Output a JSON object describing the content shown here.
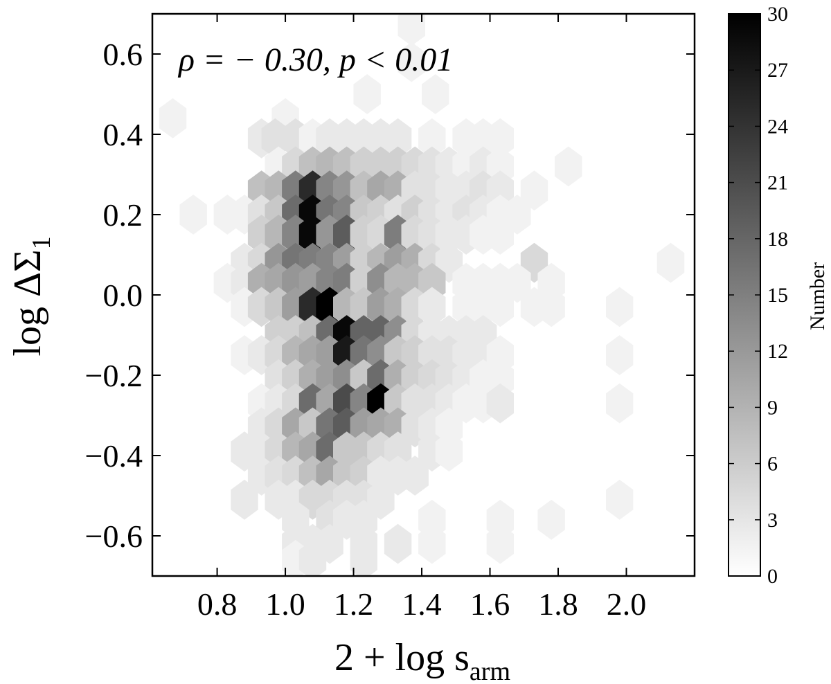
{
  "chart_data": {
    "type": "heatmap",
    "subtype": "hexbin",
    "title": "",
    "xlabel_main": "2 + log s",
    "xlabel_sub": "arm",
    "ylabel_main": "log ΔΣ",
    "ylabel_sub": "1",
    "xlim": [
      0.61,
      2.2
    ],
    "ylim": [
      -0.7,
      0.7
    ],
    "xticks": [
      "0.8",
      "1.0",
      "1.2",
      "1.4",
      "1.6",
      "1.8",
      "2.0"
    ],
    "yticks": [
      "0.6",
      "0.4",
      "0.2",
      "0.0",
      "−0.2",
      "−0.4",
      "−0.6"
    ],
    "annotation": "ρ = − 0.30, p < 0.01",
    "colorbar": {
      "label": "Number",
      "min": 0,
      "max": 30,
      "ticks": [
        "0",
        "3",
        "6",
        "9",
        "12",
        "15",
        "18",
        "21",
        "24",
        "27",
        "30"
      ],
      "cmap": "Greys"
    },
    "hex_width_x": 0.08,
    "hex_height_y": 0.0866,
    "bins": [
      [
        0.67,
        0.44,
        1
      ],
      [
        1.37,
        0.67,
        1
      ],
      [
        1.0,
        0.44,
        1
      ],
      [
        1.37,
        0.58,
        1
      ],
      [
        1.24,
        0.5,
        1
      ],
      [
        1.44,
        0.5,
        1
      ],
      [
        1.18,
        0.39,
        2
      ],
      [
        0.93,
        0.39,
        2
      ],
      [
        0.97,
        0.39,
        3
      ],
      [
        1.03,
        0.39,
        3
      ],
      [
        1.08,
        0.39,
        1
      ],
      [
        1.13,
        0.39,
        2
      ],
      [
        1.23,
        0.39,
        2
      ],
      [
        1.28,
        0.39,
        2
      ],
      [
        1.33,
        0.39,
        2
      ],
      [
        1.43,
        0.39,
        1
      ],
      [
        1.53,
        0.39,
        1
      ],
      [
        1.58,
        0.39,
        1
      ],
      [
        1.63,
        0.39,
        1
      ],
      [
        0.98,
        0.32,
        1
      ],
      [
        1.03,
        0.32,
        4
      ],
      [
        1.08,
        0.32,
        7
      ],
      [
        1.13,
        0.32,
        8
      ],
      [
        1.18,
        0.32,
        7
      ],
      [
        1.23,
        0.32,
        5
      ],
      [
        1.28,
        0.32,
        5
      ],
      [
        1.33,
        0.32,
        5
      ],
      [
        1.38,
        0.32,
        4
      ],
      [
        1.43,
        0.32,
        3
      ],
      [
        1.48,
        0.32,
        2
      ],
      [
        1.53,
        0.32,
        1
      ],
      [
        1.58,
        0.32,
        2
      ],
      [
        1.63,
        0.32,
        1
      ],
      [
        1.83,
        0.32,
        1
      ],
      [
        0.93,
        0.26,
        7
      ],
      [
        0.98,
        0.26,
        8
      ],
      [
        1.03,
        0.26,
        15
      ],
      [
        1.08,
        0.26,
        25
      ],
      [
        1.13,
        0.26,
        14
      ],
      [
        1.18,
        0.26,
        12
      ],
      [
        1.23,
        0.26,
        7
      ],
      [
        1.28,
        0.26,
        10
      ],
      [
        1.33,
        0.26,
        9
      ],
      [
        1.38,
        0.26,
        3
      ],
      [
        1.43,
        0.26,
        3
      ],
      [
        1.48,
        0.26,
        2
      ],
      [
        1.53,
        0.26,
        2
      ],
      [
        1.58,
        0.26,
        3
      ],
      [
        1.63,
        0.26,
        2
      ],
      [
        1.73,
        0.26,
        1
      ],
      [
        0.73,
        0.2,
        1
      ],
      [
        0.83,
        0.2,
        1
      ],
      [
        0.88,
        0.2,
        1
      ],
      [
        0.93,
        0.2,
        3
      ],
      [
        0.98,
        0.2,
        6
      ],
      [
        1.03,
        0.2,
        17
      ],
      [
        1.08,
        0.2,
        29
      ],
      [
        1.13,
        0.2,
        16
      ],
      [
        1.18,
        0.2,
        14
      ],
      [
        1.23,
        0.2,
        6
      ],
      [
        1.28,
        0.2,
        5
      ],
      [
        1.33,
        0.2,
        3
      ],
      [
        1.38,
        0.2,
        5
      ],
      [
        1.43,
        0.2,
        3
      ],
      [
        1.48,
        0.2,
        2
      ],
      [
        1.53,
        0.2,
        3
      ],
      [
        1.58,
        0.2,
        2
      ],
      [
        1.63,
        0.2,
        1
      ],
      [
        1.68,
        0.2,
        1
      ],
      [
        0.93,
        0.15,
        5
      ],
      [
        0.98,
        0.15,
        8
      ],
      [
        1.03,
        0.15,
        14
      ],
      [
        1.08,
        0.15,
        29
      ],
      [
        1.13,
        0.15,
        12
      ],
      [
        1.18,
        0.15,
        19
      ],
      [
        1.23,
        0.15,
        5
      ],
      [
        1.28,
        0.15,
        4
      ],
      [
        1.33,
        0.15,
        15
      ],
      [
        1.38,
        0.15,
        4
      ],
      [
        1.43,
        0.15,
        3
      ],
      [
        1.48,
        0.15,
        2
      ],
      [
        1.53,
        0.15,
        2
      ],
      [
        1.58,
        0.15,
        1
      ],
      [
        1.63,
        0.15,
        1
      ],
      [
        0.88,
        0.08,
        2
      ],
      [
        0.93,
        0.08,
        4
      ],
      [
        0.98,
        0.08,
        12
      ],
      [
        1.03,
        0.08,
        16
      ],
      [
        1.08,
        0.08,
        15
      ],
      [
        1.13,
        0.08,
        14
      ],
      [
        1.18,
        0.08,
        11
      ],
      [
        1.23,
        0.08,
        5
      ],
      [
        1.28,
        0.08,
        8
      ],
      [
        1.33,
        0.08,
        11
      ],
      [
        1.38,
        0.08,
        9
      ],
      [
        1.43,
        0.08,
        4
      ],
      [
        1.48,
        0.08,
        2
      ],
      [
        1.73,
        0.08,
        4
      ],
      [
        2.13,
        0.08,
        1
      ],
      [
        0.83,
        0.03,
        1
      ],
      [
        0.88,
        0.03,
        2
      ],
      [
        0.93,
        0.03,
        9
      ],
      [
        0.98,
        0.03,
        10
      ],
      [
        1.03,
        0.03,
        12
      ],
      [
        1.08,
        0.03,
        11
      ],
      [
        1.13,
        0.03,
        14
      ],
      [
        1.18,
        0.03,
        15
      ],
      [
        1.23,
        0.03,
        5
      ],
      [
        1.28,
        0.03,
        13
      ],
      [
        1.33,
        0.03,
        8
      ],
      [
        1.38,
        0.03,
        8
      ],
      [
        1.43,
        0.03,
        6
      ],
      [
        1.53,
        0.03,
        1
      ],
      [
        1.58,
        0.03,
        1
      ],
      [
        1.63,
        0.03,
        1
      ],
      [
        1.68,
        0.03,
        1
      ],
      [
        1.78,
        0.03,
        1
      ],
      [
        0.88,
        -0.03,
        1
      ],
      [
        0.93,
        -0.03,
        4
      ],
      [
        0.98,
        -0.03,
        6
      ],
      [
        1.03,
        -0.03,
        11
      ],
      [
        1.08,
        -0.03,
        25
      ],
      [
        1.13,
        -0.03,
        30
      ],
      [
        1.18,
        -0.03,
        8
      ],
      [
        1.23,
        -0.03,
        6
      ],
      [
        1.28,
        -0.03,
        11
      ],
      [
        1.33,
        -0.03,
        9
      ],
      [
        1.38,
        -0.03,
        4
      ],
      [
        1.43,
        -0.03,
        2
      ],
      [
        1.53,
        -0.03,
        1
      ],
      [
        1.58,
        -0.03,
        1
      ],
      [
        1.63,
        -0.03,
        1
      ],
      [
        1.73,
        -0.03,
        1
      ],
      [
        1.78,
        -0.03,
        1
      ],
      [
        1.98,
        -0.03,
        1
      ],
      [
        0.98,
        -0.1,
        5
      ],
      [
        1.03,
        -0.1,
        5
      ],
      [
        1.08,
        -0.1,
        7
      ],
      [
        1.13,
        -0.1,
        17
      ],
      [
        1.18,
        -0.1,
        29
      ],
      [
        1.23,
        -0.1,
        18
      ],
      [
        1.28,
        -0.1,
        18
      ],
      [
        1.33,
        -0.1,
        13
      ],
      [
        1.38,
        -0.1,
        4
      ],
      [
        1.43,
        -0.1,
        2
      ],
      [
        1.48,
        -0.1,
        2
      ],
      [
        1.53,
        -0.1,
        2
      ],
      [
        1.58,
        -0.1,
        2
      ],
      [
        0.88,
        -0.15,
        1
      ],
      [
        0.93,
        -0.15,
        2
      ],
      [
        0.98,
        -0.15,
        4
      ],
      [
        1.03,
        -0.15,
        8
      ],
      [
        1.08,
        -0.15,
        10
      ],
      [
        1.13,
        -0.15,
        11
      ],
      [
        1.18,
        -0.15,
        27
      ],
      [
        1.23,
        -0.15,
        16
      ],
      [
        1.28,
        -0.15,
        13
      ],
      [
        1.33,
        -0.15,
        6
      ],
      [
        1.38,
        -0.15,
        5
      ],
      [
        1.43,
        -0.15,
        3
      ],
      [
        1.48,
        -0.15,
        3
      ],
      [
        1.53,
        -0.15,
        2
      ],
      [
        1.58,
        -0.15,
        2
      ],
      [
        1.63,
        -0.15,
        1
      ],
      [
        1.98,
        -0.15,
        1
      ],
      [
        0.98,
        -0.21,
        3
      ],
      [
        1.03,
        -0.21,
        5
      ],
      [
        1.08,
        -0.21,
        9
      ],
      [
        1.13,
        -0.21,
        11
      ],
      [
        1.18,
        -0.21,
        13
      ],
      [
        1.23,
        -0.21,
        6
      ],
      [
        1.28,
        -0.21,
        17
      ],
      [
        1.33,
        -0.21,
        9
      ],
      [
        1.38,
        -0.21,
        5
      ],
      [
        1.43,
        -0.21,
        4
      ],
      [
        1.48,
        -0.21,
        3
      ],
      [
        1.53,
        -0.21,
        2
      ],
      [
        1.58,
        -0.21,
        1
      ],
      [
        1.63,
        -0.21,
        1
      ],
      [
        0.93,
        -0.27,
        1
      ],
      [
        0.98,
        -0.27,
        2
      ],
      [
        1.03,
        -0.27,
        4
      ],
      [
        1.08,
        -0.27,
        17
      ],
      [
        1.13,
        -0.27,
        10
      ],
      [
        1.18,
        -0.27,
        21
      ],
      [
        1.23,
        -0.27,
        14
      ],
      [
        1.28,
        -0.27,
        30
      ],
      [
        1.33,
        -0.27,
        6
      ],
      [
        1.38,
        -0.27,
        3
      ],
      [
        1.43,
        -0.27,
        3
      ],
      [
        1.48,
        -0.27,
        2
      ],
      [
        1.53,
        -0.27,
        1
      ],
      [
        1.58,
        -0.27,
        1
      ],
      [
        1.63,
        -0.27,
        2
      ],
      [
        1.98,
        -0.27,
        1
      ],
      [
        0.93,
        -0.33,
        2
      ],
      [
        0.98,
        -0.33,
        4
      ],
      [
        1.03,
        -0.33,
        10
      ],
      [
        1.08,
        -0.33,
        6
      ],
      [
        1.13,
        -0.33,
        16
      ],
      [
        1.18,
        -0.33,
        19
      ],
      [
        1.23,
        -0.33,
        11
      ],
      [
        1.28,
        -0.33,
        10
      ],
      [
        1.33,
        -0.33,
        9
      ],
      [
        1.38,
        -0.33,
        3
      ],
      [
        1.43,
        -0.33,
        2
      ],
      [
        1.48,
        -0.33,
        1
      ],
      [
        0.88,
        -0.39,
        2
      ],
      [
        0.93,
        -0.39,
        2
      ],
      [
        0.98,
        -0.39,
        4
      ],
      [
        1.03,
        -0.39,
        8
      ],
      [
        1.08,
        -0.39,
        10
      ],
      [
        1.13,
        -0.39,
        17
      ],
      [
        1.18,
        -0.39,
        6
      ],
      [
        1.23,
        -0.39,
        6
      ],
      [
        1.28,
        -0.39,
        4
      ],
      [
        1.33,
        -0.39,
        3
      ],
      [
        1.43,
        -0.39,
        2
      ],
      [
        1.48,
        -0.39,
        1
      ],
      [
        0.93,
        -0.45,
        2
      ],
      [
        0.98,
        -0.45,
        3
      ],
      [
        1.03,
        -0.45,
        4
      ],
      [
        1.08,
        -0.45,
        7
      ],
      [
        1.13,
        -0.45,
        10
      ],
      [
        1.18,
        -0.45,
        6
      ],
      [
        1.23,
        -0.45,
        5
      ],
      [
        1.28,
        -0.45,
        2
      ],
      [
        1.33,
        -0.45,
        2
      ],
      [
        1.38,
        -0.45,
        2
      ],
      [
        0.88,
        -0.51,
        2
      ],
      [
        0.98,
        -0.51,
        2
      ],
      [
        1.03,
        -0.51,
        2
      ],
      [
        1.08,
        -0.51,
        4
      ],
      [
        1.13,
        -0.51,
        4
      ],
      [
        1.18,
        -0.51,
        3
      ],
      [
        1.23,
        -0.51,
        3
      ],
      [
        1.28,
        -0.51,
        2
      ],
      [
        1.98,
        -0.51,
        1
      ],
      [
        1.03,
        -0.56,
        2
      ],
      [
        1.13,
        -0.56,
        3
      ],
      [
        1.18,
        -0.56,
        2
      ],
      [
        1.23,
        -0.56,
        2
      ],
      [
        1.43,
        -0.56,
        1
      ],
      [
        1.63,
        -0.56,
        1
      ],
      [
        1.78,
        -0.56,
        1
      ],
      [
        1.03,
        -0.62,
        2
      ],
      [
        1.08,
        -0.62,
        2
      ],
      [
        1.13,
        -0.62,
        2
      ],
      [
        1.23,
        -0.62,
        2
      ],
      [
        1.33,
        -0.62,
        2
      ],
      [
        1.43,
        -0.62,
        1
      ],
      [
        1.63,
        -0.62,
        1
      ],
      [
        1.03,
        -0.66,
        1
      ],
      [
        1.08,
        -0.66,
        2
      ],
      [
        1.23,
        -0.66,
        2
      ]
    ]
  }
}
